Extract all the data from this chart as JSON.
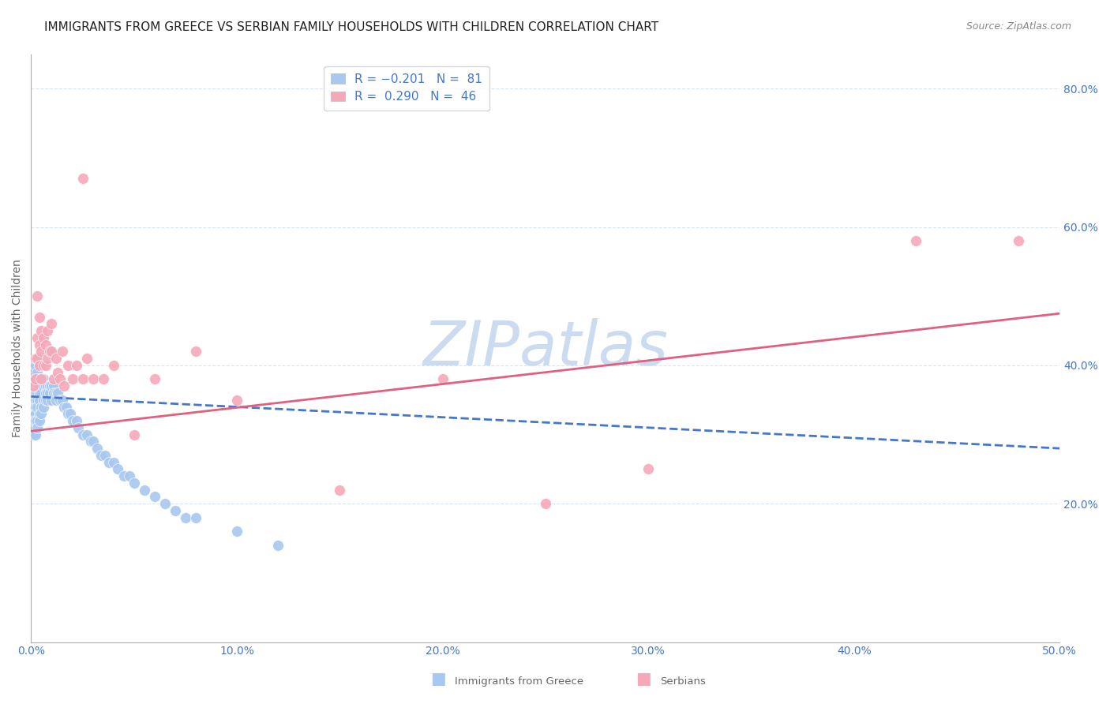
{
  "title": "IMMIGRANTS FROM GREECE VS SERBIAN FAMILY HOUSEHOLDS WITH CHILDREN CORRELATION CHART",
  "source": "Source: ZipAtlas.com",
  "ylabel": "Family Households with Children",
  "xlim": [
    0.0,
    0.5
  ],
  "ylim": [
    0.0,
    0.85
  ],
  "xticks": [
    0.0,
    0.1,
    0.2,
    0.3,
    0.4,
    0.5
  ],
  "yticks": [
    0.2,
    0.4,
    0.6,
    0.8
  ],
  "ytick_labels": [
    "20.0%",
    "40.0%",
    "60.0%",
    "80.0%"
  ],
  "xtick_labels": [
    "0.0%",
    "10.0%",
    "20.0%",
    "30.0%",
    "40.0%",
    "50.0%"
  ],
  "greece_R": -0.201,
  "greece_N": 81,
  "serbia_R": 0.29,
  "serbia_N": 46,
  "greece_color": "#a8c8f0",
  "serbia_color": "#f5a8b8",
  "greece_line_color": "#4477cc",
  "serbia_line_color": "#e06080",
  "watermark": "ZIPatlas",
  "greece_x": [
    0.001,
    0.001,
    0.001,
    0.001,
    0.001,
    0.001,
    0.002,
    0.002,
    0.002,
    0.002,
    0.002,
    0.002,
    0.002,
    0.002,
    0.003,
    0.003,
    0.003,
    0.003,
    0.003,
    0.003,
    0.003,
    0.004,
    0.004,
    0.004,
    0.004,
    0.004,
    0.004,
    0.005,
    0.005,
    0.005,
    0.005,
    0.005,
    0.006,
    0.006,
    0.006,
    0.006,
    0.007,
    0.007,
    0.007,
    0.008,
    0.008,
    0.008,
    0.009,
    0.009,
    0.01,
    0.01,
    0.011,
    0.011,
    0.012,
    0.012,
    0.013,
    0.014,
    0.015,
    0.016,
    0.017,
    0.018,
    0.019,
    0.02,
    0.022,
    0.023,
    0.025,
    0.027,
    0.029,
    0.03,
    0.032,
    0.034,
    0.036,
    0.038,
    0.04,
    0.042,
    0.045,
    0.048,
    0.05,
    0.055,
    0.06,
    0.065,
    0.07,
    0.075,
    0.08,
    0.1,
    0.12
  ],
  "greece_y": [
    0.39,
    0.36,
    0.34,
    0.33,
    0.32,
    0.3,
    0.4,
    0.38,
    0.36,
    0.35,
    0.34,
    0.33,
    0.32,
    0.3,
    0.39,
    0.38,
    0.36,
    0.35,
    0.34,
    0.32,
    0.31,
    0.38,
    0.37,
    0.36,
    0.35,
    0.33,
    0.32,
    0.38,
    0.37,
    0.36,
    0.34,
    0.33,
    0.38,
    0.37,
    0.35,
    0.34,
    0.37,
    0.36,
    0.35,
    0.37,
    0.36,
    0.35,
    0.37,
    0.36,
    0.37,
    0.35,
    0.37,
    0.36,
    0.36,
    0.35,
    0.36,
    0.35,
    0.35,
    0.34,
    0.34,
    0.33,
    0.33,
    0.32,
    0.32,
    0.31,
    0.3,
    0.3,
    0.29,
    0.29,
    0.28,
    0.27,
    0.27,
    0.26,
    0.26,
    0.25,
    0.24,
    0.24,
    0.23,
    0.22,
    0.21,
    0.2,
    0.19,
    0.18,
    0.18,
    0.16,
    0.14
  ],
  "serbia_x": [
    0.001,
    0.002,
    0.002,
    0.003,
    0.003,
    0.003,
    0.004,
    0.004,
    0.004,
    0.005,
    0.005,
    0.005,
    0.006,
    0.006,
    0.007,
    0.007,
    0.008,
    0.008,
    0.009,
    0.01,
    0.01,
    0.011,
    0.012,
    0.013,
    0.014,
    0.015,
    0.016,
    0.018,
    0.02,
    0.022,
    0.025,
    0.025,
    0.027,
    0.03,
    0.035,
    0.04,
    0.05,
    0.06,
    0.08,
    0.1,
    0.15,
    0.2,
    0.25,
    0.3,
    0.43,
    0.48
  ],
  "serbia_y": [
    0.37,
    0.41,
    0.38,
    0.5,
    0.44,
    0.41,
    0.47,
    0.43,
    0.4,
    0.45,
    0.42,
    0.38,
    0.44,
    0.4,
    0.43,
    0.4,
    0.45,
    0.41,
    0.42,
    0.46,
    0.42,
    0.38,
    0.41,
    0.39,
    0.38,
    0.42,
    0.37,
    0.4,
    0.38,
    0.4,
    0.67,
    0.38,
    0.41,
    0.38,
    0.38,
    0.4,
    0.3,
    0.38,
    0.42,
    0.35,
    0.22,
    0.38,
    0.2,
    0.25,
    0.58,
    0.58
  ],
  "greece_trend_y_start": 0.355,
  "greece_trend_y_end": 0.28,
  "serbia_trend_y_start": 0.305,
  "serbia_trend_y_end": 0.475,
  "axis_color": "#4477cc",
  "grid_color": "#d8e4f0",
  "title_fontsize": 11,
  "source_fontsize": 9,
  "axis_label_fontsize": 10,
  "tick_fontsize": 10,
  "legend_fontsize": 11,
  "watermark_color": "#ccdcf0",
  "watermark_fontsize": 56
}
